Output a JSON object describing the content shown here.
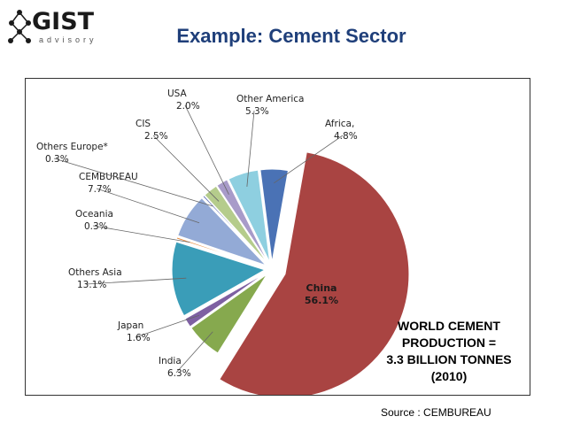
{
  "header": {
    "logo_word": "GIST",
    "logo_sub": "advisory",
    "title": "Example: Cement Sector"
  },
  "chart_data": {
    "type": "pie",
    "title": "WORLD CEMENT PRODUCTION = 3.3 BILLION TONNES (2010)",
    "categories": [
      "China",
      "India",
      "Japan",
      "Others Asia",
      "Oceania",
      "CEMBUREAU",
      "Others Europe*",
      "CIS",
      "USA",
      "Other America",
      "Africa,"
    ],
    "values": [
      56.1,
      6.3,
      1.6,
      13.1,
      0.3,
      7.7,
      0.3,
      2.5,
      2.0,
      5.3,
      4.8
    ],
    "value_labels": [
      "56.1%",
      "6.3%",
      "1.6%",
      "13.1%",
      "0.3%",
      "7.7%",
      "0.3%",
      "2.5%",
      "2.0%",
      "5.3%",
      "4.8%"
    ],
    "colors": [
      "#a94442",
      "#86a94e",
      "#7e60a2",
      "#3a9db8",
      "#e98a3a",
      "#93aad6",
      "#6a7ab8",
      "#b5cc8c",
      "#a89bc9",
      "#8ecfe0",
      "#4a72b5"
    ],
    "exploded": true
  },
  "box": {
    "line1": "WORLD CEMENT",
    "line2": "PRODUCTION =",
    "line3": "3.3  BILLION TONNES",
    "line4": "(2010)"
  },
  "footer": {
    "source": "Source : CEMBUREAU"
  }
}
